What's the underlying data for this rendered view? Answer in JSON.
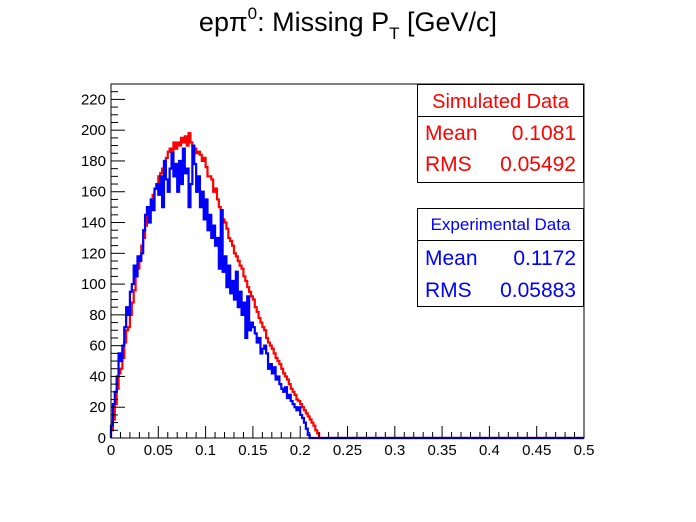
{
  "title": {
    "base": "ep",
    "pi": "π",
    "sup": "0",
    "text": ": Missing P",
    "sub": "T",
    "unit": " [GeV/c]"
  },
  "colors": {
    "simulated": "#ff0000",
    "experimental": "#0000ff",
    "axis": "#000000"
  },
  "legend": {
    "simulated": {
      "title": "Simulated Data",
      "mean_label": "Mean",
      "mean_value": "0.1081",
      "rms_label": "RMS",
      "rms_value": "0.05492"
    },
    "experimental": {
      "title": "Experimental Data",
      "mean_label": "Mean",
      "mean_value": "0.1172",
      "rms_label": "RMS",
      "rms_value": "0.05883"
    }
  },
  "chart_data": {
    "type": "histogram",
    "xlim": [
      0,
      0.5
    ],
    "ylim": [
      0,
      230
    ],
    "bin_width": 0.002,
    "xticks": [
      "0",
      "0.05",
      "0.1",
      "0.15",
      "0.2",
      "0.25",
      "0.3",
      "0.35",
      "0.4",
      "0.45",
      "0.5"
    ],
    "yticks": [
      "0",
      "20",
      "40",
      "60",
      "80",
      "100",
      "120",
      "140",
      "160",
      "180",
      "200",
      "220"
    ],
    "grid": false,
    "series": [
      {
        "name": "Simulated Data",
        "color": "#ff0000",
        "values": [
          5,
          12,
          22,
          32,
          42,
          45,
          52,
          62,
          70,
          72,
          80,
          88,
          96,
          105,
          110,
          118,
          125,
          130,
          138,
          145,
          148,
          150,
          158,
          162,
          165,
          170,
          172,
          175,
          178,
          182,
          186,
          188,
          185,
          192,
          188,
          192,
          190,
          195,
          192,
          196,
          190,
          198,
          192,
          190,
          188,
          185,
          186,
          184,
          180,
          182,
          176,
          170,
          170,
          168,
          160,
          162,
          155,
          150,
          148,
          142,
          140,
          136,
          130,
          128,
          125,
          120,
          118,
          115,
          112,
          110,
          105,
          102,
          98,
          95,
          92,
          90,
          85,
          82,
          78,
          75,
          72,
          70,
          65,
          62,
          60,
          58,
          55,
          52,
          50,
          48,
          45,
          42,
          40,
          38,
          35,
          32,
          30,
          28,
          25,
          24,
          22,
          20,
          18,
          16,
          14,
          12,
          10,
          8,
          5,
          3,
          0
        ]
      },
      {
        "name": "Experimental Data",
        "color": "#0000ff",
        "values": [
          8,
          22,
          30,
          40,
          55,
          50,
          60,
          72,
          85,
          80,
          95,
          100,
          112,
          105,
          118,
          115,
          120,
          135,
          145,
          150,
          140,
          155,
          148,
          162,
          165,
          158,
          170,
          150,
          180,
          168,
          160,
          175,
          185,
          170,
          178,
          160,
          180,
          165,
          188,
          172,
          175,
          150,
          165,
          190,
          178,
          160,
          170,
          150,
          160,
          142,
          155,
          135,
          145,
          130,
          138,
          125,
          130,
          110,
          148,
          108,
          118,
          98,
          112,
          94,
          102,
          90,
          108,
          85,
          95,
          80,
          88,
          65,
          92,
          70,
          75,
          72,
          68,
          62,
          65,
          55,
          58,
          60,
          55,
          45,
          48,
          42,
          46,
          38,
          40,
          35,
          32,
          30,
          33,
          26,
          28,
          24,
          22,
          20,
          18,
          20,
          15,
          13,
          10,
          6,
          2,
          0
        ]
      }
    ]
  }
}
